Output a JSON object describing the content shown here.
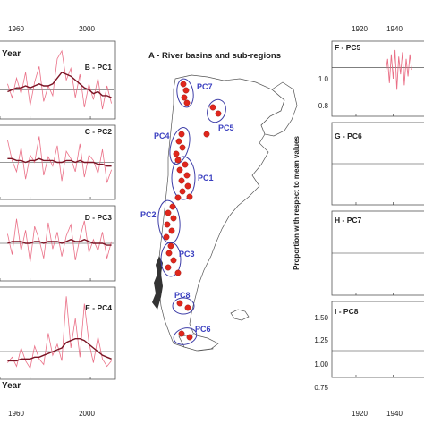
{
  "left_panels": {
    "top_axis_label": "Year",
    "bottom_axis_label": "Year",
    "top_ticks": [
      "1960",
      "2000"
    ],
    "bottom_ticks": [
      "1960",
      "2000"
    ]
  },
  "map": {
    "title": "A - River basins and sub-regions",
    "region_labels": [
      "PC7",
      "PC5",
      "PC4",
      "PC1",
      "PC2",
      "PC3",
      "PC8",
      "PC6"
    ]
  },
  "right_panels": {
    "ylabel": "Proportion with respect to mean values",
    "top_ticks": [
      "1920",
      "1940"
    ],
    "bottom_ticks": [
      "1920",
      "1940"
    ],
    "y_ticks_top": [
      "1.0",
      "0.8"
    ],
    "y_ticks_bottom": [
      "1.50",
      "1.25",
      "1.00",
      "0.75"
    ]
  },
  "chart_data": [
    {
      "type": "line",
      "title": "B - PC1",
      "x": [
        1945,
        1948,
        1951,
        1954,
        1957,
        1960,
        1963,
        1966,
        1969,
        1972,
        1975,
        1978,
        1981,
        1984,
        1987,
        1990,
        1993,
        1996,
        1999,
        2002,
        2005,
        2008,
        2011,
        2014
      ],
      "series": [
        {
          "values": [
            0.3,
            -0.4,
            0.6,
            -0.2,
            0.9,
            -0.8,
            0.4,
            1.2,
            -0.6,
            0.2,
            -0.3,
            1.6,
            2.0,
            0.5,
            1.1,
            -0.4,
            0.8,
            -0.9,
            0.3,
            -0.5,
            0.6,
            -1.0,
            0.2,
            -0.7
          ]
        },
        {
          "values": [
            -0.1,
            0.0,
            0.1,
            0.1,
            0.2,
            0.1,
            0.2,
            0.3,
            0.2,
            0.2,
            0.3,
            0.6,
            0.9,
            0.8,
            0.7,
            0.5,
            0.3,
            0.1,
            0.0,
            -0.2,
            -0.1,
            -0.3,
            -0.3,
            -0.4
          ]
        }
      ],
      "xlim": [
        1940,
        2016
      ],
      "ylim": [
        -1.5,
        2.5
      ]
    },
    {
      "type": "line",
      "title": "C - PC2",
      "x": [
        1945,
        1948,
        1951,
        1954,
        1957,
        1960,
        1963,
        1966,
        1969,
        1972,
        1975,
        1978,
        1981,
        1984,
        1987,
        1990,
        1993,
        1996,
        1999,
        2002,
        2005,
        2008,
        2011,
        2014
      ],
      "series": [
        {
          "values": [
            1.2,
            0.1,
            -0.5,
            0.8,
            -0.9,
            0.4,
            0.0,
            1.4,
            -0.7,
            0.3,
            -0.2,
            0.9,
            -1.0,
            0.6,
            0.2,
            -0.5,
            1.0,
            -0.8,
            0.4,
            0.1,
            -0.6,
            0.7,
            -1.1,
            -0.4
          ]
        },
        {
          "values": [
            0.2,
            0.2,
            0.1,
            0.1,
            0.0,
            0.1,
            0.1,
            0.2,
            0.1,
            0.1,
            0.1,
            0.0,
            0.0,
            0.1,
            0.1,
            0.0,
            0.1,
            0.0,
            0.0,
            0.0,
            -0.1,
            -0.1,
            -0.2,
            -0.2
          ]
        }
      ],
      "xlim": [
        1940,
        2016
      ],
      "ylim": [
        -2,
        2
      ]
    },
    {
      "type": "line",
      "title": "D - PC3",
      "x": [
        1945,
        1948,
        1951,
        1954,
        1957,
        1960,
        1963,
        1966,
        1969,
        1972,
        1975,
        1978,
        1981,
        1984,
        1987,
        1990,
        1993,
        1996,
        1999,
        2002,
        2005,
        2008,
        2011,
        2014
      ],
      "series": [
        {
          "values": [
            0.5,
            -0.6,
            1.3,
            -0.4,
            0.7,
            -1.0,
            0.9,
            0.2,
            -0.8,
            1.1,
            -0.3,
            0.6,
            -0.7,
            0.4,
            1.0,
            -0.9,
            0.3,
            1.2,
            -0.5,
            0.2,
            -0.4,
            0.6,
            -0.8,
            0.1
          ]
        },
        {
          "values": [
            0.0,
            0.1,
            0.1,
            0.1,
            0.0,
            0.0,
            0.1,
            0.1,
            0.0,
            0.1,
            0.1,
            0.1,
            0.0,
            0.1,
            0.2,
            0.1,
            0.1,
            0.2,
            0.1,
            0.0,
            0.0,
            0.0,
            -0.1,
            -0.1
          ]
        }
      ],
      "xlim": [
        1940,
        2016
      ],
      "ylim": [
        -2,
        2
      ]
    },
    {
      "type": "line",
      "title": "E - PC4",
      "x": [
        1945,
        1948,
        1951,
        1954,
        1957,
        1960,
        1963,
        1966,
        1969,
        1972,
        1975,
        1978,
        1981,
        1984,
        1987,
        1990,
        1993,
        1996,
        1999,
        2002,
        2005,
        2008,
        2011,
        2014
      ],
      "series": [
        {
          "values": [
            -0.6,
            -0.3,
            -0.8,
            0.2,
            -0.5,
            -0.9,
            0.3,
            -0.4,
            -0.7,
            1.0,
            -0.2,
            0.4,
            -0.5,
            3.0,
            0.2,
            1.8,
            -0.3,
            2.6,
            0.5,
            -0.6,
            0.8,
            -0.4,
            -0.8,
            -0.5
          ]
        },
        {
          "values": [
            -0.5,
            -0.5,
            -0.5,
            -0.4,
            -0.4,
            -0.4,
            -0.3,
            -0.3,
            -0.2,
            -0.1,
            0.0,
            0.1,
            0.2,
            0.5,
            0.6,
            0.7,
            0.7,
            0.6,
            0.4,
            0.2,
            0.0,
            -0.2,
            -0.3,
            -0.4
          ]
        }
      ],
      "xlim": [
        1940,
        2016
      ],
      "ylim": [
        -1.5,
        3.5
      ]
    },
    {
      "type": "line",
      "title": "F - PC5",
      "x": [
        1936,
        1937,
        1938,
        1939,
        1940,
        1941,
        1942,
        1943,
        1944,
        1945,
        1946,
        1947,
        1948,
        1949,
        1950
      ],
      "series": [
        {
          "values": [
            0.98,
            1.04,
            0.93,
            1.06,
            0.95,
            1.08,
            0.9,
            1.05,
            0.97,
            1.07,
            0.92,
            1.04,
            0.96,
            1.06,
            0.99
          ]
        }
      ],
      "xlim": [
        1907,
        1960
      ],
      "ylim": [
        0.78,
        1.12
      ],
      "yticks": [
        1.0,
        0.8
      ]
    },
    {
      "type": "line",
      "title": "G - PC6",
      "xlim": [
        1907,
        1960
      ]
    },
    {
      "type": "line",
      "title": "H - PC7",
      "xlim": [
        1907,
        1960
      ]
    },
    {
      "type": "line",
      "title": "I - PC8",
      "xlim": [
        1907,
        1960
      ],
      "ylim": [
        0.7,
        1.55
      ],
      "yticks": [
        1.5,
        1.25,
        1.0,
        0.75
      ]
    }
  ],
  "colors": {
    "raw_series": "#e8607a",
    "smooth_series": "#7a1424",
    "points": "#e0261c",
    "subregion_outline": "#3f3fa8",
    "label_blue": "#3a3fc0"
  }
}
